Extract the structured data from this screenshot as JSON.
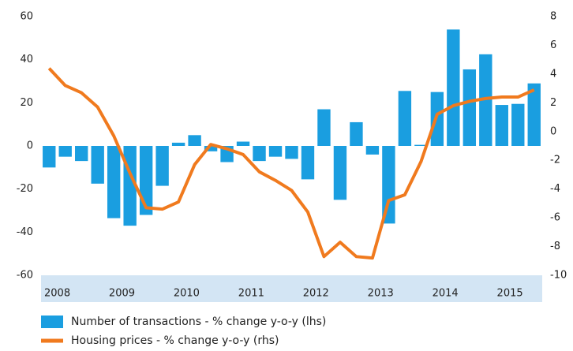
{
  "chart_data": {
    "type": "bar_line",
    "categories": [
      "2008",
      null,
      null,
      null,
      "2009",
      null,
      null,
      null,
      "2010",
      null,
      null,
      null,
      "2011",
      null,
      null,
      null,
      "2012",
      null,
      null,
      null,
      "2013",
      null,
      null,
      null,
      "2014",
      null,
      null,
      null,
      "2015",
      null,
      null
    ],
    "series": [
      {
        "name": "Number of transactions - % change y-o-y (lhs)",
        "color": "#1a9ee0",
        "type": "bar",
        "values": [
          -10,
          -5,
          -7,
          -17.5,
          -33.5,
          -37,
          -32,
          -18.5,
          1.5,
          5,
          -2.5,
          -7.5,
          2,
          -7,
          -5,
          -6,
          -15.5,
          17,
          -25,
          11,
          -4,
          -36,
          25.5,
          0.5,
          25,
          54,
          35.5,
          42.5,
          19,
          19.5,
          29
        ]
      },
      {
        "name": "Housing prices - % change y-o-y (rhs)",
        "color": "#f07a1e",
        "type": "line",
        "axis": "y2",
        "values": [
          4.4,
          3.2,
          2.7,
          1.7,
          -0.3,
          -2.9,
          -5.3,
          -5.4,
          -4.9,
          -2.3,
          -0.9,
          -1.2,
          -1.6,
          -2.8,
          -3.4,
          -4.1,
          -5.6,
          -8.7,
          -7.7,
          -8.7,
          -8.8,
          -4.8,
          -4.4,
          -2.1,
          1.2,
          1.8,
          2.1,
          2.3,
          2.4,
          2.4,
          2.9
        ]
      }
    ],
    "ylim": [
      -60,
      60
    ],
    "yticks": [
      -60,
      -40,
      -20,
      0,
      20,
      40,
      60
    ],
    "y2lim": [
      -10,
      8
    ],
    "y2ticks": [
      -10,
      -8,
      -6,
      -4,
      -2,
      0,
      2,
      4,
      6,
      8
    ],
    "legend": "bottom"
  }
}
